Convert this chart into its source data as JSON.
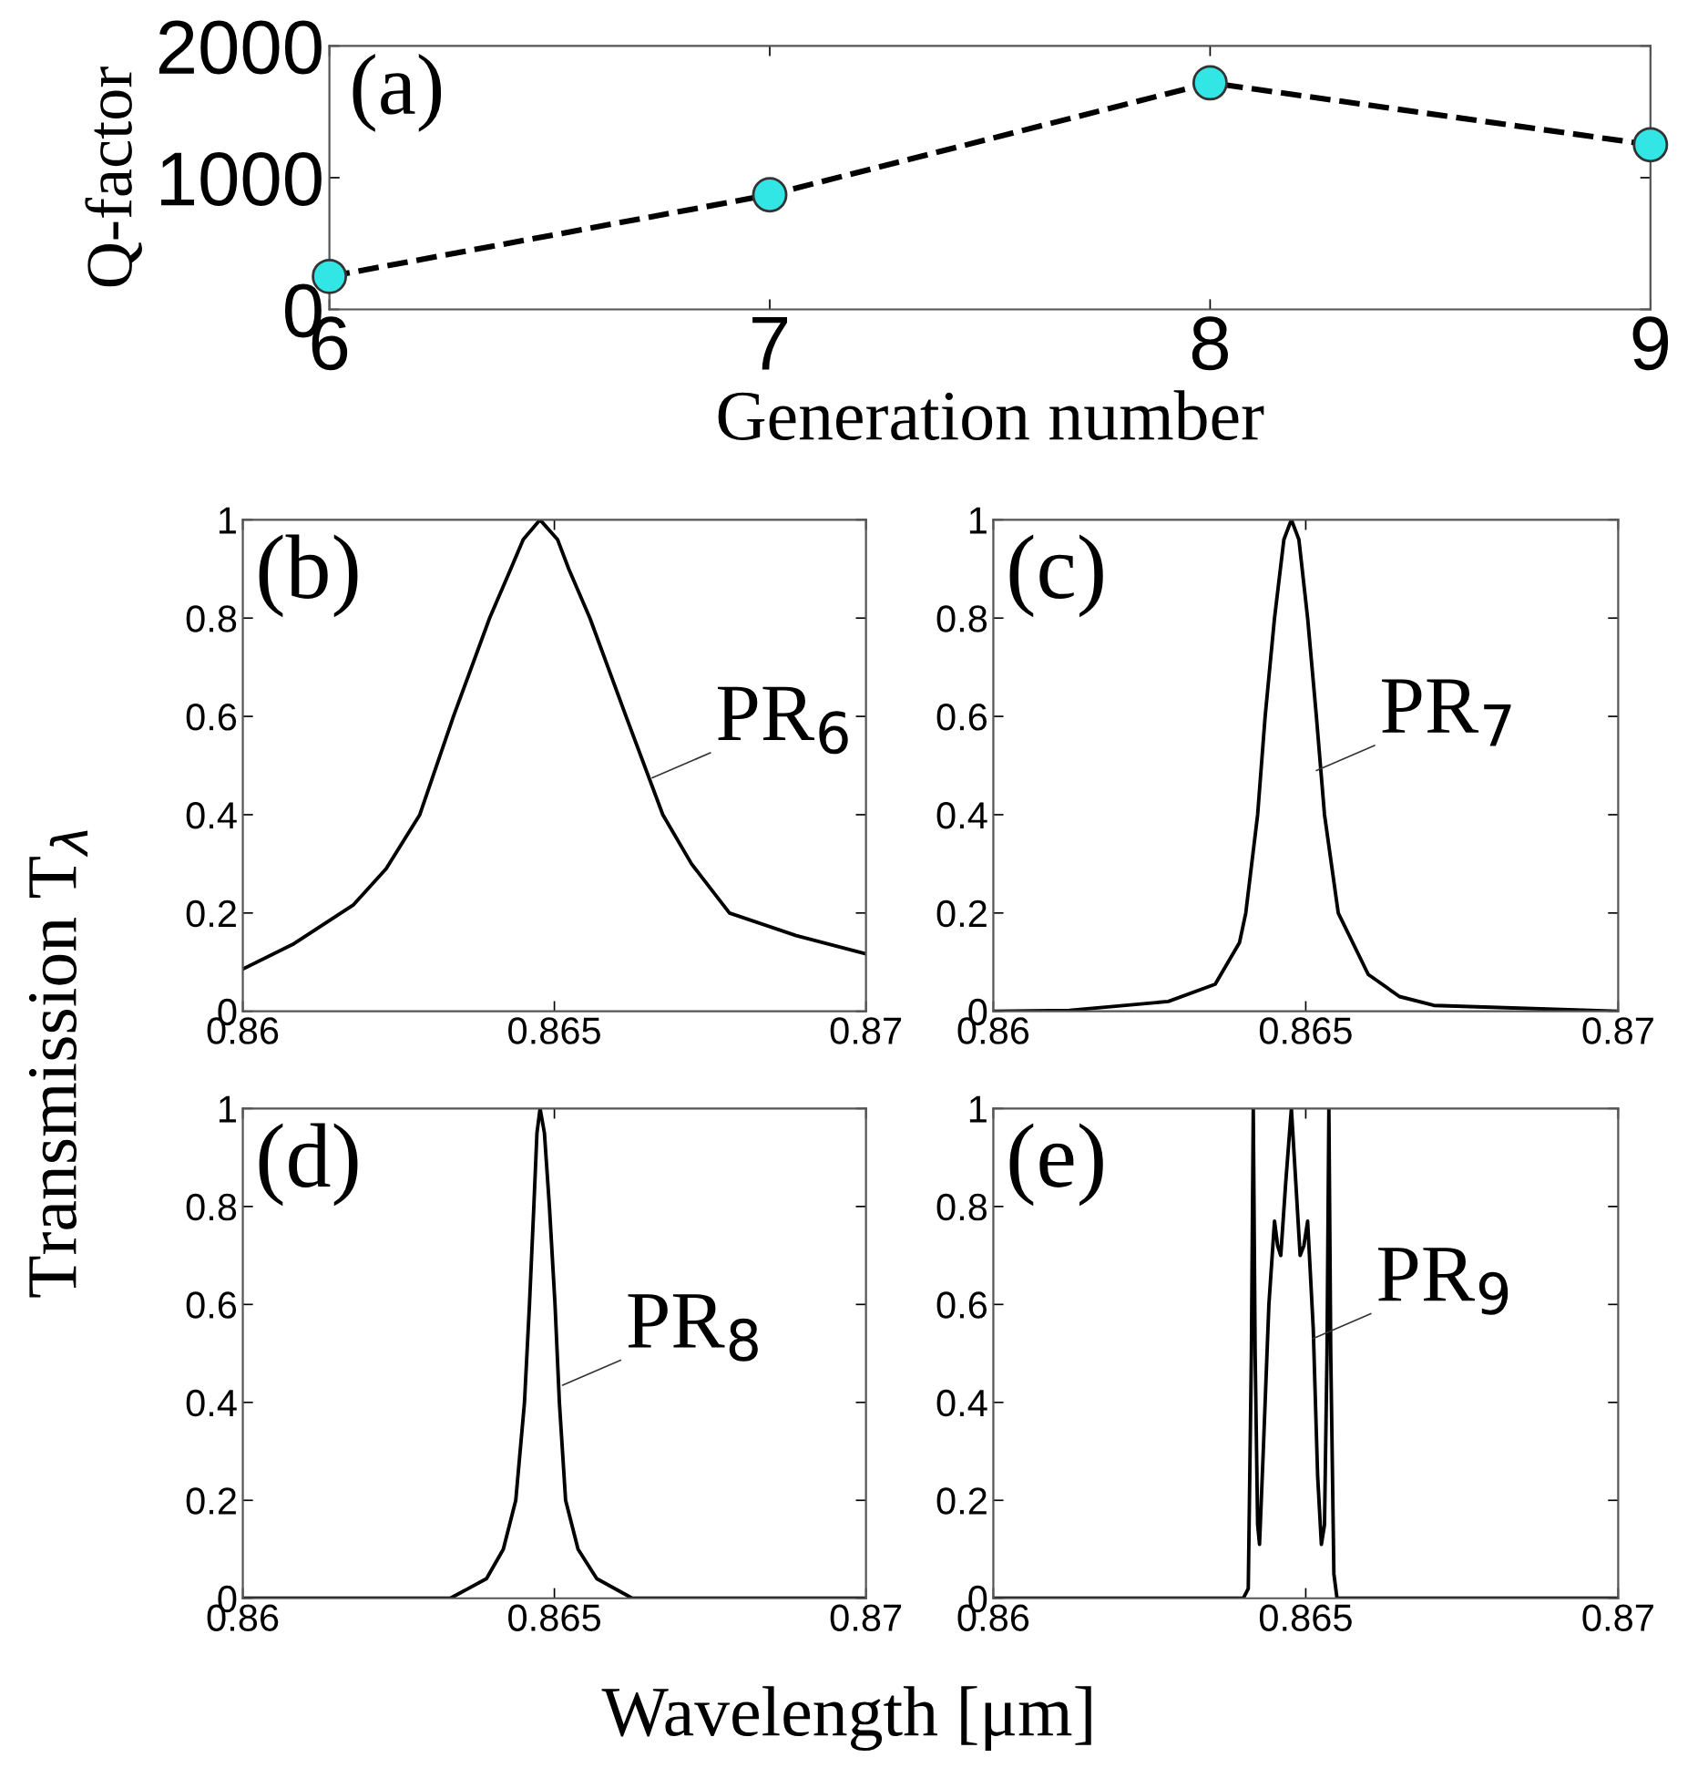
{
  "chart_data": [
    {
      "type": "line",
      "xlabel": "Generation number",
      "ylabel": "Q-factor",
      "x": [
        6,
        7,
        8,
        9
      ],
      "series": [
        {
          "color": "#000000",
          "colors": [
            "#33e6e6",
            "#33e6e6",
            "#33e6e6",
            "#33e6e6"
          ],
          "values": [
            250,
            870,
            1720,
            1250
          ]
        }
      ],
      "xlim": [
        6,
        9
      ],
      "ylim": [
        0,
        2000
      ],
      "xticks": [
        6,
        7,
        8,
        9
      ],
      "yticks": [
        0,
        1000,
        2000
      ],
      "marker": "circle",
      "line_style": "dashed",
      "grid": false,
      "legend": false,
      "annotations": [
        "(a)"
      ]
    },
    {
      "type": "line",
      "ylabel": "Transmission T$_{λ}$",
      "x": [
        0.86,
        0.8608,
        0.86177,
        0.8623,
        0.86284,
        0.86338,
        0.86396,
        0.8643,
        0.8645,
        0.86477,
        0.86505,
        0.86523,
        0.86557,
        0.86615,
        0.86674,
        0.8672,
        0.86781,
        0.86888,
        0.87
      ],
      "series": [
        {
          "color": "#000000",
          "values": [
            0.086,
            0.136,
            0.216,
            0.29,
            0.4,
            0.6,
            0.8,
            0.9,
            0.96,
            1.0,
            0.96,
            0.9,
            0.8,
            0.6,
            0.4,
            0.3,
            0.2,
            0.154,
            0.117
          ]
        }
      ],
      "xlim": [
        0.86,
        0.87
      ],
      "ylim": [
        0,
        1
      ],
      "xticks": [
        0.86,
        0.865,
        0.87
      ],
      "yticks": [
        0,
        0.2,
        0.4,
        0.6,
        0.8,
        1
      ],
      "line_style": "solid",
      "grid": false,
      "legend": false,
      "annotations": [
        "(b)",
        {
          "text": "PR$_{6}$",
          "x": 0.86657,
          "y": 0.475
        }
      ]
    },
    {
      "type": "line",
      "x": [
        0.86,
        0.86122,
        0.8628,
        0.86355,
        0.86394,
        0.86404,
        0.86423,
        0.86435,
        0.8645,
        0.86465,
        0.86477,
        0.86489,
        0.86503,
        0.86517,
        0.8653,
        0.86552,
        0.866,
        0.8665,
        0.86705,
        0.87
      ],
      "series": [
        {
          "color": "#000000",
          "values": [
            0,
            0.002,
            0.02,
            0.055,
            0.14,
            0.2,
            0.4,
            0.6,
            0.8,
            0.96,
            1.0,
            0.96,
            0.8,
            0.6,
            0.4,
            0.2,
            0.075,
            0.03,
            0.012,
            0
          ]
        }
      ],
      "xlim": [
        0.86,
        0.87
      ],
      "ylim": [
        0,
        1
      ],
      "xticks": [
        0.86,
        0.865,
        0.87
      ],
      "yticks": [
        0,
        0.2,
        0.4,
        0.6,
        0.8,
        1
      ],
      "line_style": "solid",
      "grid": false,
      "legend": false,
      "annotations": [
        "(c)",
        {
          "text": "PR$_{7}$",
          "x": 0.86517,
          "y": 0.49
        }
      ]
    },
    {
      "type": "line",
      "xlabel": "Wavelength [μm]",
      "x": [
        0.86,
        0.86333,
        0.86391,
        0.86418,
        0.86438,
        0.86452,
        0.8646,
        0.86467,
        0.86472,
        0.86477,
        0.86484,
        0.86492,
        0.86501,
        0.86508,
        0.86518,
        0.86538,
        0.86568,
        0.86625,
        0.87
      ],
      "series": [
        {
          "color": "#000000",
          "values": [
            0,
            0,
            0.04,
            0.1,
            0.2,
            0.4,
            0.6,
            0.8,
            0.95,
            1.0,
            0.95,
            0.8,
            0.6,
            0.4,
            0.2,
            0.1,
            0.04,
            0,
            0
          ]
        }
      ],
      "xlim": [
        0.86,
        0.87
      ],
      "ylim": [
        0,
        1
      ],
      "xticks": [
        0.86,
        0.865,
        0.87
      ],
      "yticks": [
        0,
        0.2,
        0.4,
        0.6,
        0.8,
        1
      ],
      "line_style": "solid",
      "grid": false,
      "legend": false,
      "annotations": [
        "(d)",
        {
          "text": "PR$_{8}$",
          "x": 0.86513,
          "y": 0.435
        }
      ]
    },
    {
      "type": "line",
      "x": [
        0.86,
        0.864,
        0.86408,
        0.86413,
        0.86416,
        0.86419,
        0.86423,
        0.86426,
        0.86432,
        0.86441,
        0.8645,
        0.86455,
        0.8646,
        0.86468,
        0.86477,
        0.86484,
        0.86491,
        0.86497,
        0.86503,
        0.86512,
        0.86519,
        0.86525,
        0.8653,
        0.86534,
        0.86537,
        0.8654,
        0.86545,
        0.8655,
        0.87
      ],
      "series": [
        {
          "color": "#000000",
          "values": [
            0,
            0,
            0.02,
            0.5,
            1.0,
            0.5,
            0.15,
            0.11,
            0.3,
            0.6,
            0.77,
            0.72,
            0.7,
            0.85,
            1.0,
            0.85,
            0.7,
            0.72,
            0.77,
            0.55,
            0.25,
            0.11,
            0.15,
            0.5,
            1.0,
            0.5,
            0.05,
            0,
            0
          ]
        }
      ],
      "xlim": [
        0.86,
        0.87
      ],
      "ylim": [
        0,
        1
      ],
      "xticks": [
        0.86,
        0.865,
        0.87
      ],
      "yticks": [
        0,
        0.2,
        0.4,
        0.6,
        0.8,
        1
      ],
      "line_style": "solid",
      "grid": false,
      "legend": false,
      "annotations": [
        "(e)",
        {
          "text": "PR$_{9}$",
          "x": 0.86511,
          "y": 0.53
        }
      ]
    }
  ]
}
